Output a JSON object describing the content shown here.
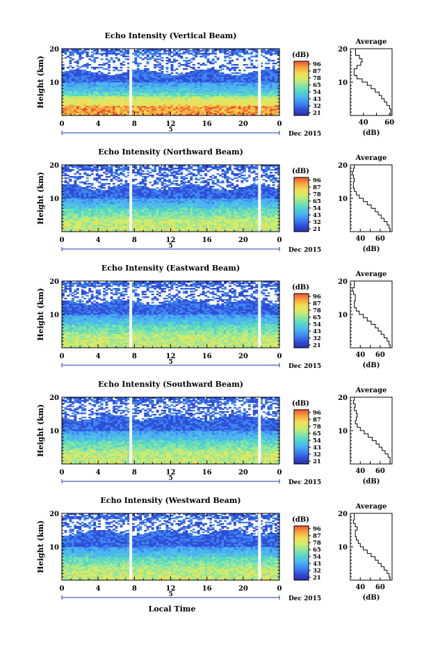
{
  "chart_data": [
    {
      "type": "heatmap",
      "title": "Echo Intensity (Vertical Beam)",
      "ylabel": "Height (km)",
      "ylim": [
        0,
        20
      ],
      "yticks": [
        "10",
        "20"
      ],
      "xlim": [
        0,
        24
      ],
      "xticks": [
        "0",
        "4",
        "8",
        "12",
        "16",
        "20",
        "0"
      ],
      "date_mark": "5",
      "date_label": "Dec 2015",
      "data_gaps_hours": [
        7.6,
        21.8
      ],
      "colorbar": {
        "unit": "(dB)",
        "ticks": [
          "96",
          "87",
          "78",
          "65",
          "54",
          "43",
          "32",
          "21"
        ]
      },
      "profile": {
        "title": "Average",
        "xlabel": "(dB)",
        "xticks": [
          "40",
          "60"
        ],
        "xlim": [
          30,
          62
        ],
        "yticks": [
          "10",
          "20"
        ],
        "heights": [
          1,
          2,
          3,
          4,
          5,
          6,
          7,
          8,
          9,
          10,
          11,
          12,
          13,
          14,
          15,
          16,
          17,
          18,
          19,
          20
        ],
        "values": [
          61,
          61,
          60,
          58,
          56,
          54,
          52,
          49,
          46,
          43,
          39,
          35,
          33,
          33,
          35,
          38,
          39,
          37,
          34,
          34
        ]
      }
    },
    {
      "type": "heatmap",
      "title": "Echo Intensity (Northward Beam)",
      "ylabel": "Height (km)",
      "ylim": [
        0,
        20
      ],
      "yticks": [
        "10",
        "20"
      ],
      "xlim": [
        0,
        24
      ],
      "xticks": [
        "0",
        "4",
        "8",
        "12",
        "16",
        "20",
        "0"
      ],
      "date_mark": "5",
      "date_label": "Dec 2015",
      "data_gaps_hours": [
        7.6,
        21.8
      ],
      "colorbar": {
        "unit": "(dB)",
        "ticks": [
          "96",
          "87",
          "78",
          "65",
          "54",
          "43",
          "32",
          "21"
        ]
      },
      "profile": {
        "title": "Average",
        "xlabel": "(dB)",
        "xticks": [
          "40",
          "60"
        ],
        "xlim": [
          30,
          72
        ],
        "yticks": [
          "10",
          "20"
        ],
        "heights": [
          1,
          2,
          3,
          4,
          5,
          6,
          7,
          8,
          9,
          10,
          11,
          12,
          13,
          14,
          15,
          16,
          17,
          18,
          19,
          20
        ],
        "values": [
          70,
          69,
          67,
          64,
          61,
          58,
          55,
          51,
          47,
          43,
          39,
          36,
          34,
          33,
          33,
          34,
          33,
          32,
          33,
          34
        ]
      }
    },
    {
      "type": "heatmap",
      "title": "Echo Intensity (Eastward Beam)",
      "ylabel": "Height (km)",
      "ylim": [
        0,
        20
      ],
      "yticks": [
        "10",
        "20"
      ],
      "xlim": [
        0,
        24
      ],
      "xticks": [
        "0",
        "4",
        "8",
        "12",
        "16",
        "20",
        "0"
      ],
      "date_mark": "5",
      "date_label": "Dec 2015",
      "data_gaps_hours": [
        7.6,
        21.8
      ],
      "colorbar": {
        "unit": "(dB)",
        "ticks": [
          "96",
          "87",
          "78",
          "65",
          "54",
          "43",
          "32",
          "21"
        ]
      },
      "profile": {
        "title": "Average",
        "xlabel": "(dB)",
        "xticks": [
          "40",
          "60"
        ],
        "xlim": [
          30,
          72
        ],
        "yticks": [
          "10",
          "20"
        ],
        "heights": [
          1,
          2,
          3,
          4,
          5,
          6,
          7,
          8,
          9,
          10,
          11,
          12,
          13,
          14,
          15,
          16,
          17,
          18,
          19,
          20
        ],
        "values": [
          70,
          69,
          67,
          64,
          61,
          58,
          55,
          51,
          47,
          43,
          39,
          36,
          34,
          34,
          35,
          35,
          33,
          32,
          34,
          34
        ]
      }
    },
    {
      "type": "heatmap",
      "title": "Echo Intensity (Southward Beam)",
      "ylabel": "Height (km)",
      "ylim": [
        0,
        20
      ],
      "yticks": [
        "10",
        "20"
      ],
      "xlim": [
        0,
        24
      ],
      "xticks": [
        "0",
        "4",
        "8",
        "12",
        "16",
        "20",
        "0"
      ],
      "date_mark": "5",
      "date_label": "Dec 2015",
      "data_gaps_hours": [
        7.6,
        21.8
      ],
      "colorbar": {
        "unit": "(dB)",
        "ticks": [
          "96",
          "87",
          "78",
          "65",
          "54",
          "43",
          "32",
          "21"
        ]
      },
      "profile": {
        "title": "Average",
        "xlabel": "(dB)",
        "xticks": [
          "40",
          "60"
        ],
        "xlim": [
          30,
          72
        ],
        "yticks": [
          "10",
          "20"
        ],
        "heights": [
          1,
          2,
          3,
          4,
          5,
          6,
          7,
          8,
          9,
          10,
          11,
          12,
          13,
          14,
          15,
          16,
          17,
          18,
          19,
          20
        ],
        "values": [
          70,
          70,
          68,
          65,
          62,
          59,
          56,
          52,
          48,
          44,
          40,
          37,
          35,
          36,
          37,
          36,
          34,
          35,
          33,
          34
        ]
      }
    },
    {
      "type": "heatmap",
      "title": "Echo Intensity (Westward Beam)",
      "ylabel": "Height (km)",
      "ylim": [
        0,
        20
      ],
      "yticks": [
        "10",
        "20"
      ],
      "xlim": [
        0,
        24
      ],
      "xticks": [
        "0",
        "4",
        "8",
        "12",
        "16",
        "20",
        "0"
      ],
      "date_mark": "5",
      "date_label": "Dec 2015",
      "data_gaps_hours": [
        7.6,
        21.8
      ],
      "colorbar": {
        "unit": "(dB)",
        "ticks": [
          "96",
          "87",
          "78",
          "65",
          "54",
          "43",
          "32",
          "21"
        ]
      },
      "profile": {
        "title": "Average",
        "xlabel": "(dB)",
        "xticks": [
          "40",
          "60"
        ],
        "xlim": [
          30,
          72
        ],
        "yticks": [
          "10",
          "20"
        ],
        "heights": [
          1,
          2,
          3,
          4,
          5,
          6,
          7,
          8,
          9,
          10,
          11,
          12,
          13,
          14,
          15,
          16,
          17,
          18,
          19,
          20
        ],
        "values": [
          70,
          69,
          67,
          64,
          61,
          58,
          55,
          51,
          47,
          43,
          40,
          38,
          36,
          35,
          35,
          37,
          35,
          33,
          34,
          34
        ]
      }
    }
  ],
  "footer": {
    "xlabel": "Local Time"
  },
  "colors": {
    "scale": [
      "#2b2fa6",
      "#2f4fd8",
      "#3f86f0",
      "#4cb5f0",
      "#55d6c8",
      "#8fe6a0",
      "#d2ec6a",
      "#f4dc55",
      "#f6a23e",
      "#ee5030"
    ],
    "gap": "#ffffff"
  }
}
